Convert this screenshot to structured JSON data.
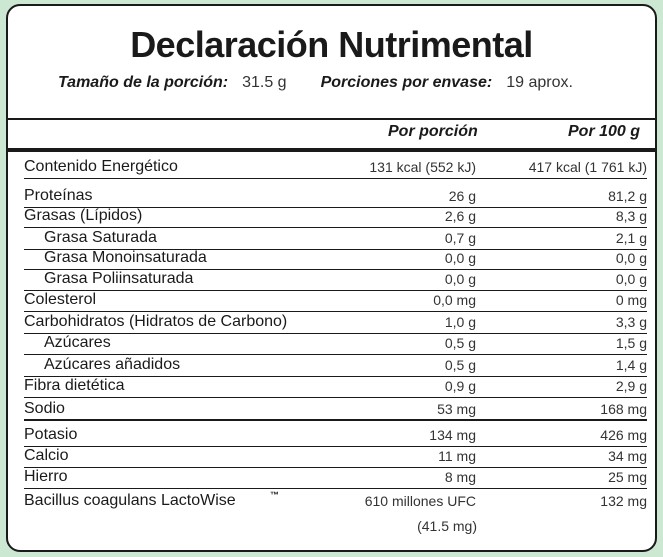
{
  "title": "Declaración Nutrimental",
  "serving": {
    "size_label": "Tamaño de la porción:",
    "size_value": "31.5 g",
    "servings_label": "Porciones por envase:",
    "servings_value": "19 aprox."
  },
  "headers": {
    "per_serving": "Por porción",
    "per_100g": "Por 100 g"
  },
  "rows": [
    {
      "name": "Contenido Energético",
      "per_serving": "131 kcal (552 kJ)",
      "per_100g": "417  kcal (1 761 kJ)",
      "sub": false
    },
    {
      "name": "Proteínas",
      "per_serving": "26 g",
      "per_100g": "81,2 g",
      "sub": false
    },
    {
      "name": "Grasas (Lípidos)",
      "per_serving": "2,6 g",
      "per_100g": "8,3 g",
      "sub": false
    },
    {
      "name": "Grasa Saturada",
      "per_serving": "0,7 g",
      "per_100g": "2,1 g",
      "sub": true
    },
    {
      "name": "Grasa Monoinsaturada",
      "per_serving": "0,0 g",
      "per_100g": "0,0 g",
      "sub": true
    },
    {
      "name": "Grasa Poliinsaturada",
      "per_serving": "0,0 g",
      "per_100g": "0,0 g",
      "sub": true
    },
    {
      "name": "Colesterol",
      "per_serving": "0,0 mg",
      "per_100g": "0 mg",
      "sub": false
    },
    {
      "name": "Carbohidratos (Hidratos de Carbono)",
      "per_serving": "1,0 g",
      "per_100g": "3,3 g",
      "sub": false
    },
    {
      "name": "Azúcares",
      "per_serving": "0,5 g",
      "per_100g": "1,5 g",
      "sub": true
    },
    {
      "name": "Azúcares añadidos",
      "per_serving": "0,5 g",
      "per_100g": "1,4 g",
      "sub": true
    },
    {
      "name": "Fibra dietética",
      "per_serving": "0,9 g",
      "per_100g": "2,9 g",
      "sub": false
    },
    {
      "name": "Sodio",
      "per_serving": "53 mg",
      "per_100g": "168 mg",
      "sub": false
    },
    {
      "name": "Potasio",
      "per_serving": "134 mg",
      "per_100g": "426 mg",
      "sub": false
    },
    {
      "name": "Calcio",
      "per_serving": "11 mg",
      "per_100g": "34 mg",
      "sub": false
    },
    {
      "name": "Hierro",
      "per_serving": "8 mg",
      "per_100g": "25 mg",
      "sub": false
    },
    {
      "name": "Bacillus coagulans LactoWise",
      "per_serving": "610 millones UFC",
      "per_100g": "132 mg",
      "sub": false,
      "trademark": "TM"
    }
  ],
  "extra_line": "(41.5 mg)"
}
